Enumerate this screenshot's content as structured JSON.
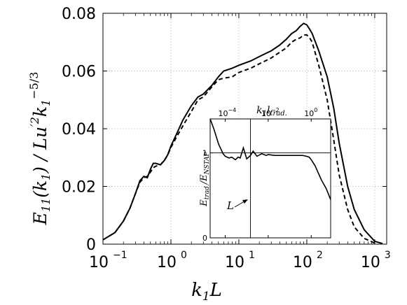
{
  "chart_data": [
    {
      "type": "line",
      "title": "",
      "xlabel": "k1L",
      "ylabel": "E11(k1) / Lu'2k1^-5/3",
      "xscale": "log",
      "xlim": [
        0.1,
        1500
      ],
      "ylim": [
        0,
        0.08
      ],
      "grid": true,
      "x_tick_labels": [
        "10",
        "10",
        "10",
        "10",
        "10"
      ],
      "x_tick_exponents": [
        "−1",
        "0",
        "1",
        "2",
        "3"
      ],
      "y_tick_labels": [
        "0",
        "0.02",
        "0.04",
        "0.06",
        "0.08"
      ],
      "series": [
        {
          "style": "solid",
          "x": [
            0.1,
            0.15,
            0.2,
            0.25,
            0.3,
            0.35,
            0.4,
            0.45,
            0.5,
            0.55,
            0.6,
            0.7,
            0.8,
            0.9,
            1.0,
            1.2,
            1.5,
            2,
            2.5,
            3,
            4,
            5,
            6,
            8,
            10,
            15,
            20,
            30,
            40,
            50,
            60,
            70,
            80,
            90,
            100,
            110,
            120,
            150,
            200,
            250,
            300,
            400,
            500,
            700,
            1000,
            1300
          ],
          "y": [
            0.0015,
            0.004,
            0.008,
            0.0125,
            0.0175,
            0.022,
            0.0235,
            0.023,
            0.026,
            0.028,
            0.028,
            0.0275,
            0.029,
            0.031,
            0.034,
            0.038,
            0.043,
            0.048,
            0.051,
            0.052,
            0.055,
            0.058,
            0.06,
            0.061,
            0.062,
            0.0635,
            0.065,
            0.067,
            0.069,
            0.071,
            0.073,
            0.074,
            0.0755,
            0.0765,
            0.076,
            0.0745,
            0.073,
            0.067,
            0.058,
            0.047,
            0.035,
            0.02,
            0.012,
            0.005,
            0.001,
            0.0002
          ]
        },
        {
          "style": "dashed",
          "x": [
            0.1,
            0.15,
            0.2,
            0.25,
            0.3,
            0.35,
            0.4,
            0.45,
            0.5,
            0.55,
            0.6,
            0.7,
            0.8,
            0.9,
            1.0,
            1.2,
            1.5,
            2,
            2.5,
            3,
            4,
            5,
            6,
            8,
            10,
            15,
            20,
            30,
            40,
            50,
            60,
            70,
            80,
            90,
            100,
            110,
            120,
            150,
            200,
            250,
            300,
            400,
            500,
            700,
            1000
          ],
          "y": [
            0.0015,
            0.004,
            0.008,
            0.0125,
            0.0175,
            0.0215,
            0.023,
            0.0235,
            0.025,
            0.0265,
            0.027,
            0.0275,
            0.029,
            0.031,
            0.0335,
            0.037,
            0.041,
            0.046,
            0.05,
            0.051,
            0.0545,
            0.057,
            0.0575,
            0.058,
            0.0595,
            0.061,
            0.0625,
            0.0645,
            0.0665,
            0.068,
            0.07,
            0.071,
            0.0715,
            0.0725,
            0.0725,
            0.0715,
            0.07,
            0.062,
            0.05,
            0.036,
            0.024,
            0.012,
            0.006,
            0.002,
            0.0004
          ]
        }
      ],
      "annotations": []
    },
    {
      "type": "line",
      "title": "",
      "xlabel": "k1ltrad.",
      "ylabel": "Etrad./ENSTAP",
      "xscale": "log",
      "xlim": [
        2e-05,
        8
      ],
      "ylim": [
        0,
        1.4
      ],
      "x_tick_labels": [
        "10",
        "10",
        "10"
      ],
      "x_tick_exponents": [
        "−4",
        "−2",
        "0"
      ],
      "y_tick_labels": [
        "0",
        "1"
      ],
      "reference_lines": {
        "horizontal": 1,
        "vertical_x": 0.0015
      },
      "annotations": [
        {
          "text": "L"
        }
      ],
      "series": [
        {
          "style": "solid",
          "x": [
            2e-05,
            3e-05,
            5e-05,
            8e-05,
            0.0001,
            0.00015,
            0.0002,
            0.0003,
            0.0004,
            0.0005,
            0.0007,
            0.001,
            0.0015,
            0.002,
            0.003,
            0.005,
            0.008,
            0.01,
            0.02,
            0.05,
            0.1,
            0.2,
            0.4,
            0.6,
            0.8,
            1,
            1.5,
            2,
            3,
            5,
            8
          ],
          "y": [
            1.4,
            1.28,
            1.1,
            0.99,
            0.96,
            0.94,
            0.95,
            0.92,
            0.95,
            0.94,
            1.06,
            0.93,
            0.97,
            1.02,
            0.96,
            0.99,
            0.97,
            0.98,
            0.97,
            0.97,
            0.97,
            0.97,
            0.97,
            0.96,
            0.95,
            0.92,
            0.85,
            0.78,
            0.68,
            0.58,
            0.45
          ]
        }
      ]
    }
  ]
}
